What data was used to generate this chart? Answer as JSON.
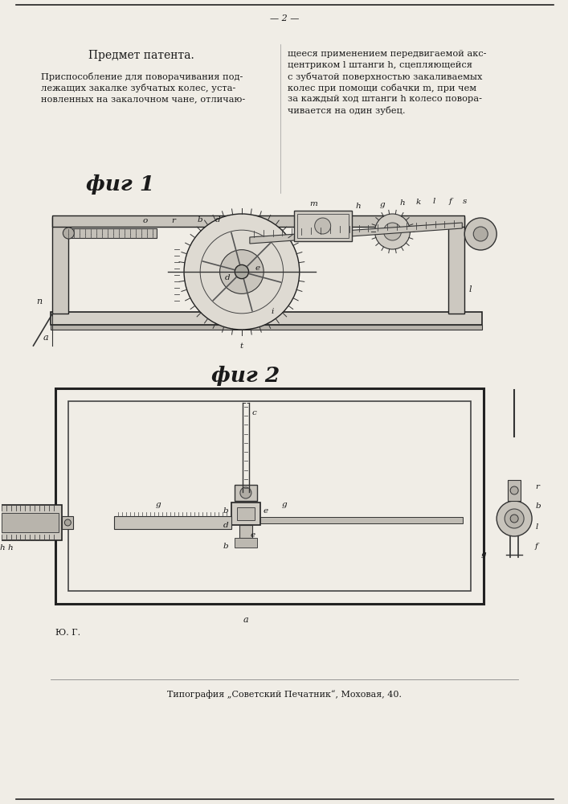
{
  "page_number_text": "— 2 —",
  "left_header": "Предмет патента.",
  "left_line1": "Приспособление для поворачивания под-",
  "left_line2": "лежащих закалке зубчатых колес, уста-",
  "left_line3": "новленных на закалочном чане, отличаю-",
  "right_line1": "щееся применением передвигаемой акс-",
  "right_line2": "центриком l штанги h, сцепляющейся",
  "right_line3": "с зубчатой поверхностью закаливаемых",
  "right_line4": "колес при помощи собачки m, при чем",
  "right_line5": "за каждый ход штанги h колесо повора-",
  "right_line6": "чивается на один зубец.",
  "fig1_label": "фиг 1",
  "fig2_label": "фиг 2",
  "footer_text": "Типография „Советский Печатник“, Моховая, 40.",
  "bottom_note": "Ю. Г.",
  "bg_color": "#f0ede6",
  "text_color": "#1a1a1a",
  "fig_width": 7.07,
  "fig_height": 10.0
}
